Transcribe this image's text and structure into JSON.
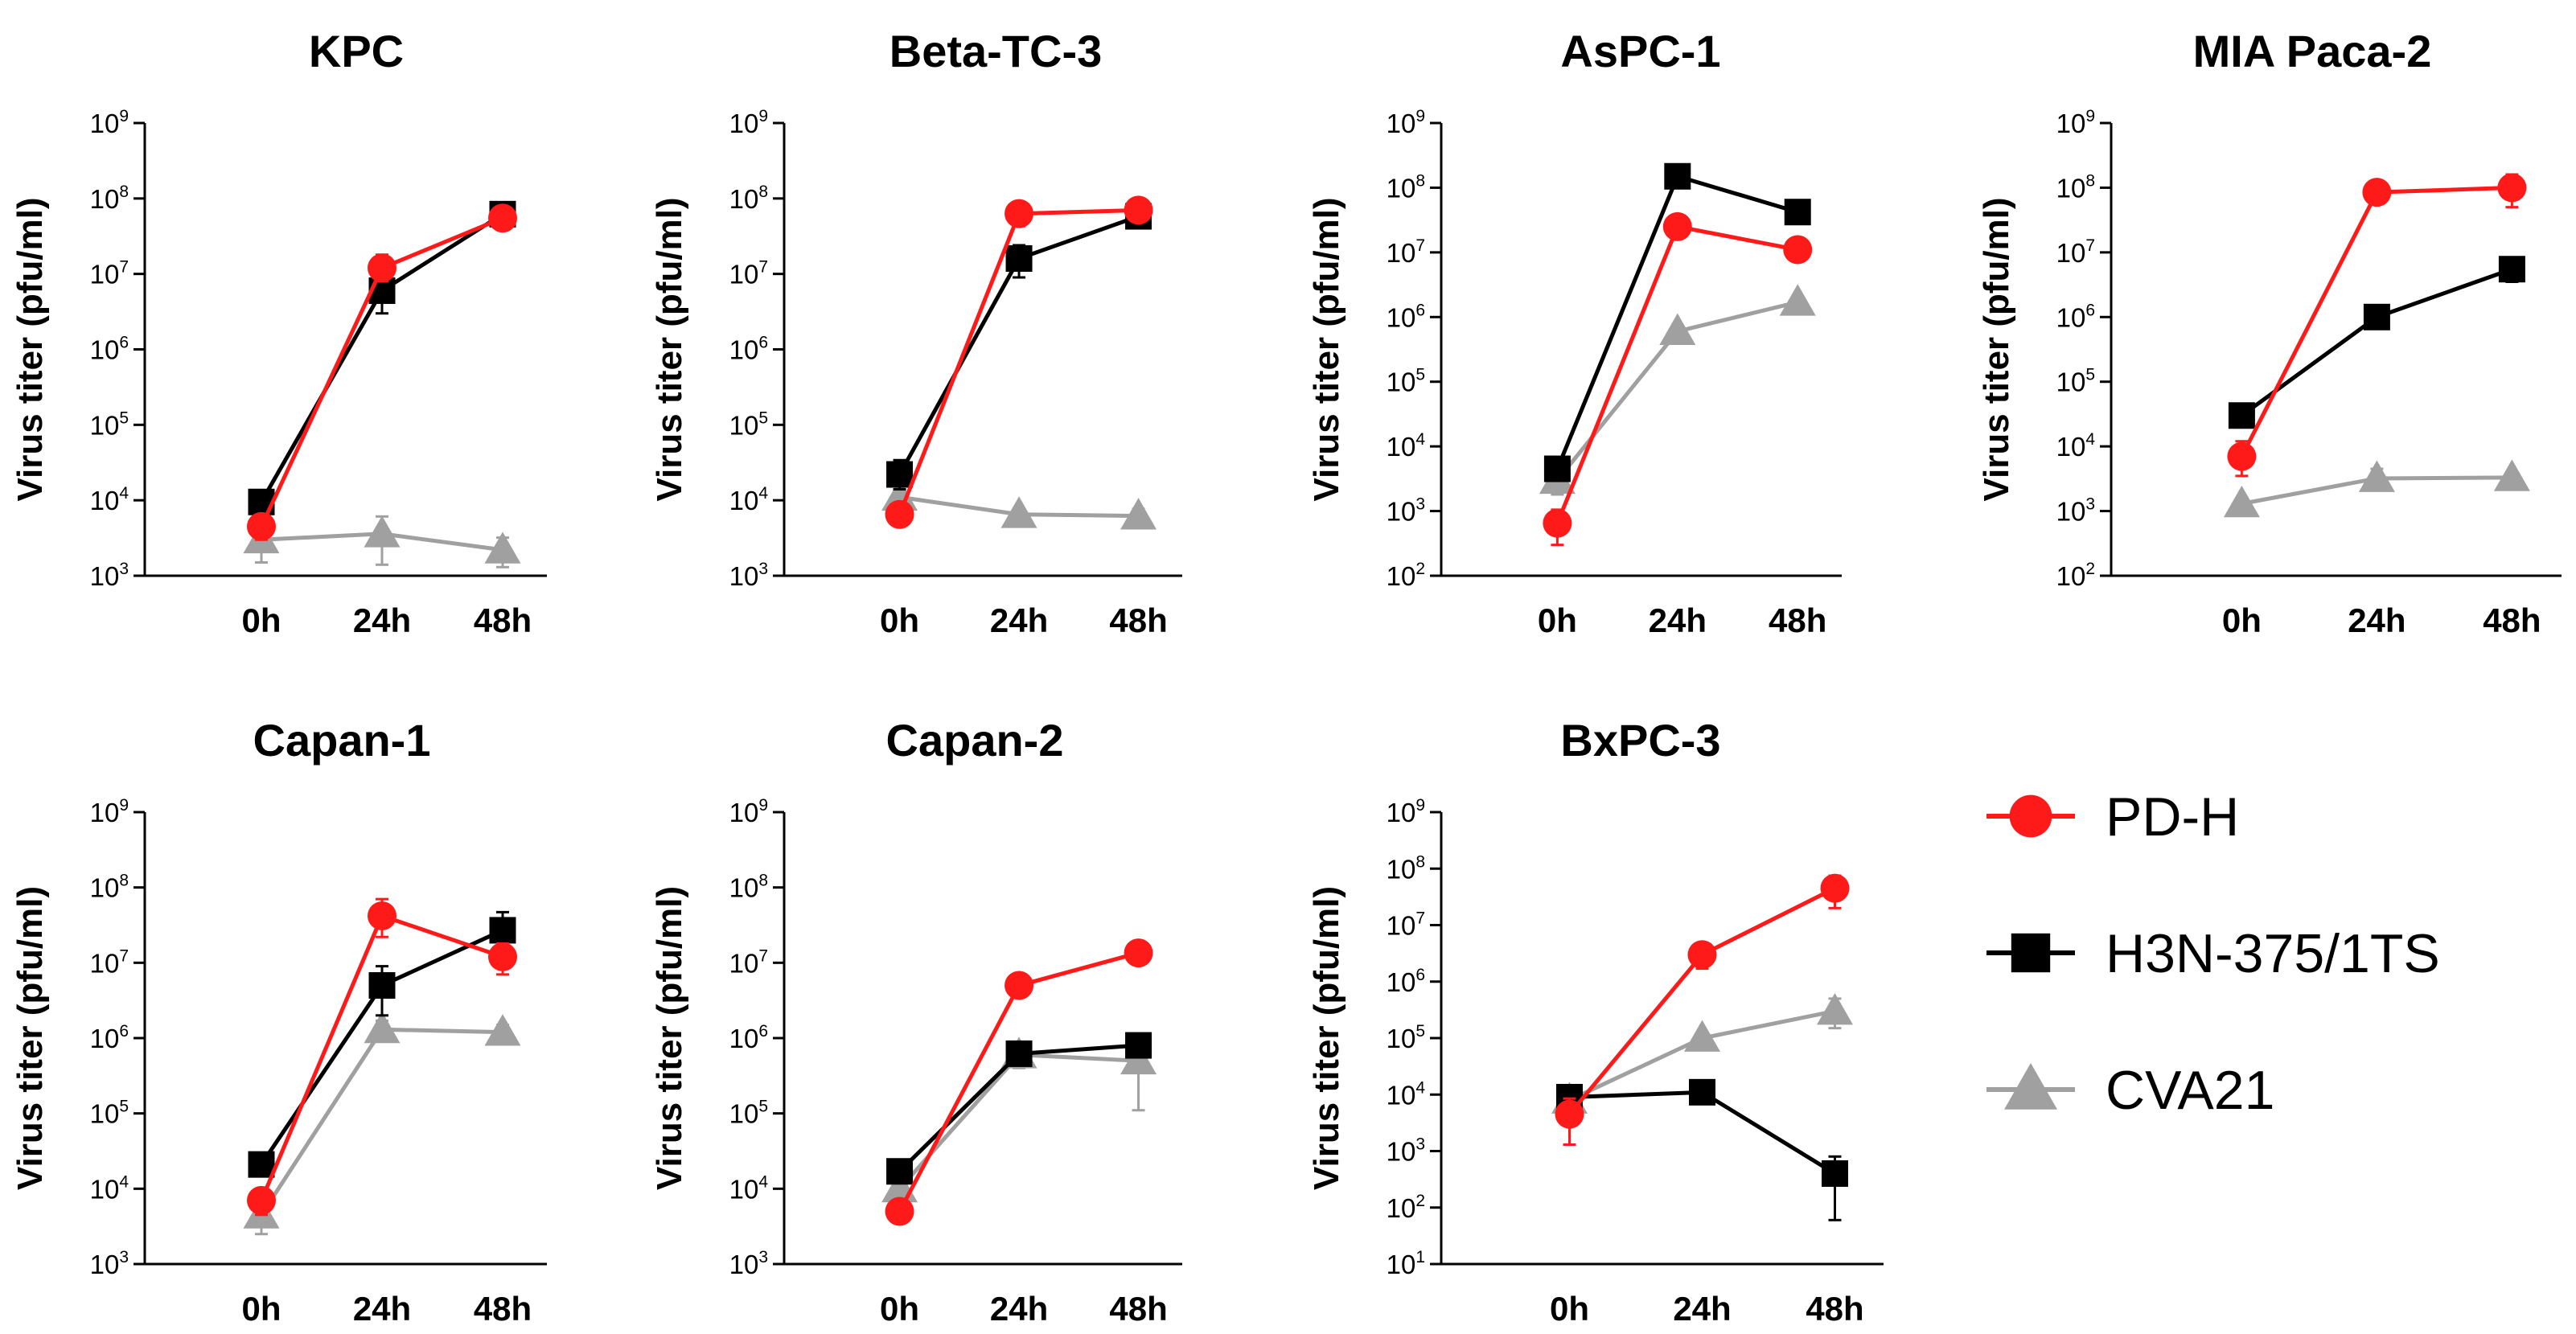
{
  "chart_data": [
    {
      "type": "line",
      "title": "KPC",
      "ylabel": "Virus titer (pfu/ml)",
      "yscale": "log",
      "ylim_exp": [
        3,
        9
      ],
      "categories": [
        "0h",
        "24h",
        "48h"
      ],
      "series": [
        {
          "name": "PD-H",
          "values": [
            4500,
            12000000,
            55000000
          ],
          "err_up": [
            1500,
            6000000,
            8000000
          ],
          "err_down": [
            1500,
            4000000,
            5000000
          ]
        },
        {
          "name": "H3N-375/1TS",
          "values": [
            9500,
            6000000,
            62000000
          ],
          "err_up": [
            3000,
            3000000,
            6000000
          ],
          "err_down": [
            2500,
            3000000,
            4000000
          ]
        },
        {
          "name": "CVA21",
          "values": [
            3000,
            3600,
            2200
          ],
          "err_up": [
            1500,
            2500,
            1000
          ],
          "err_down": [
            1500,
            2200,
            900
          ]
        }
      ]
    },
    {
      "type": "line",
      "title": "Beta-TC-3",
      "ylabel": "Virus titer (pfu/ml)",
      "yscale": "log",
      "ylim_exp": [
        3,
        9
      ],
      "categories": [
        "0h",
        "24h",
        "48h"
      ],
      "series": [
        {
          "name": "PD-H",
          "values": [
            6500,
            63000000,
            70000000
          ],
          "err_up": [
            2500,
            25000000,
            20000000
          ],
          "err_down": [
            2000,
            20000000,
            15000000
          ]
        },
        {
          "name": "H3N-375/1TS",
          "values": [
            22000,
            16000000,
            58000000
          ],
          "err_up": [
            12000,
            8000000,
            20000000
          ],
          "err_down": [
            8000,
            7000000,
            15000000
          ]
        },
        {
          "name": "CVA21",
          "values": [
            11000,
            6500,
            6200
          ],
          "err_up": [
            2500,
            1000,
            1500
          ],
          "err_down": [
            2000,
            1000,
            1200
          ]
        }
      ]
    },
    {
      "type": "line",
      "title": "AsPC-1",
      "ylabel": "Virus titer (pfu/ml)",
      "yscale": "log",
      "ylim_exp": [
        2,
        9
      ],
      "categories": [
        "0h",
        "24h",
        "48h"
      ],
      "series": [
        {
          "name": "PD-H",
          "values": [
            650,
            25000000,
            11000000
          ],
          "err_up": [
            400,
            10000000,
            2000000
          ],
          "err_down": [
            350,
            8000000,
            2000000
          ]
        },
        {
          "name": "H3N-375/1TS",
          "values": [
            4500,
            150000000,
            42000000
          ],
          "err_up": [
            1500,
            40000000,
            6000000
          ],
          "err_down": [
            1500,
            30000000,
            5000000
          ]
        },
        {
          "name": "CVA21",
          "values": [
            3000,
            600000,
            1700000
          ],
          "err_up": [
            1500,
            100000,
            300000
          ],
          "err_down": [
            1200,
            100000,
            300000
          ]
        }
      ]
    },
    {
      "type": "line",
      "title": "MIA Paca-2",
      "ylabel": "Virus titer (pfu/ml)",
      "yscale": "log",
      "ylim_exp": [
        2,
        9
      ],
      "categories": [
        "0h",
        "24h",
        "48h"
      ],
      "series": [
        {
          "name": "PD-H",
          "values": [
            7000,
            85000000,
            100000000
          ],
          "err_up": [
            5000,
            10000000,
            60000000
          ],
          "err_down": [
            3500,
            10000000,
            50000000
          ]
        },
        {
          "name": "H3N-375/1TS",
          "values": [
            30000,
            1000000,
            5500000
          ],
          "err_up": [
            5000,
            150000,
            2500000
          ],
          "err_down": [
            5000,
            150000,
            2000000
          ]
        },
        {
          "name": "CVA21",
          "values": [
            1300,
            3200,
            3300
          ],
          "err_up": [
            300,
            1300,
            600
          ],
          "err_down": [
            300,
            1000,
            500
          ]
        }
      ]
    },
    {
      "type": "line",
      "title": "Capan-1",
      "ylabel": "Virus titer (pfu/ml)",
      "yscale": "log",
      "ylim_exp": [
        3,
        9
      ],
      "categories": [
        "0h",
        "24h",
        "48h"
      ],
      "series": [
        {
          "name": "PD-H",
          "values": [
            7000,
            42000000,
            12000000
          ],
          "err_up": [
            3000,
            28000000,
            6000000
          ],
          "err_down": [
            2500,
            20000000,
            5000000
          ]
        },
        {
          "name": "H3N-375/1TS",
          "values": [
            21000,
            5000000,
            27000000
          ],
          "err_up": [
            5000,
            4000000,
            20000000
          ],
          "err_down": [
            5000,
            3000000,
            15000000
          ]
        },
        {
          "name": "CVA21",
          "values": [
            4500,
            1300000,
            1200000
          ],
          "err_up": [
            2500,
            400000,
            300000
          ],
          "err_down": [
            2000,
            400000,
            300000
          ]
        }
      ]
    },
    {
      "type": "line",
      "title": "Capan-2",
      "ylabel": "Virus titer (pfu/ml)",
      "yscale": "log",
      "ylim_exp": [
        3,
        9
      ],
      "categories": [
        "0h",
        "24h",
        "48h"
      ],
      "series": [
        {
          "name": "PD-H",
          "values": [
            5000,
            5000000,
            13500000
          ],
          "err_up": [
            2000,
            500000,
            1500000
          ],
          "err_down": [
            1500,
            500000,
            1500000
          ]
        },
        {
          "name": "H3N-375/1TS",
          "values": [
            17000,
            620000,
            800000
          ],
          "err_up": [
            6000,
            100000,
            200000
          ],
          "err_down": [
            5000,
            100000,
            200000
          ]
        },
        {
          "name": "CVA21",
          "values": [
            10000,
            600000,
            500000
          ],
          "err_up": [
            3000,
            200000,
            500000
          ],
          "err_down": [
            3000,
            200000,
            390000
          ]
        }
      ]
    },
    {
      "type": "line",
      "title": "BxPC-3",
      "ylabel": "Virus titer (pfu/ml)",
      "yscale": "log",
      "ylim_exp": [
        1,
        9
      ],
      "categories": [
        "0h",
        "24h",
        "48h"
      ],
      "series": [
        {
          "name": "PD-H",
          "values": [
            4500,
            3000000,
            45000000
          ],
          "err_up": [
            4000,
            1500000,
            30000000
          ],
          "err_down": [
            3200,
            1300000,
            25000000
          ]
        },
        {
          "name": "H3N-375/1TS",
          "values": [
            9000,
            11000,
            400
          ],
          "err_up": [
            2000,
            2000,
            400
          ],
          "err_down": [
            2000,
            2000,
            340
          ]
        },
        {
          "name": "CVA21",
          "values": [
            8000,
            100000,
            300000
          ],
          "err_up": [
            2000,
            15000,
            200000
          ],
          "err_down": [
            2000,
            15000,
            150000
          ]
        }
      ]
    }
  ],
  "legend": [
    {
      "name": "PD-H",
      "color": "#ff1a1a",
      "marker": "circle"
    },
    {
      "name": "H3N-375/1TS",
      "color": "#000000",
      "marker": "square"
    },
    {
      "name": "CVA21",
      "color": "#a0a0a0",
      "marker": "triangle"
    }
  ]
}
